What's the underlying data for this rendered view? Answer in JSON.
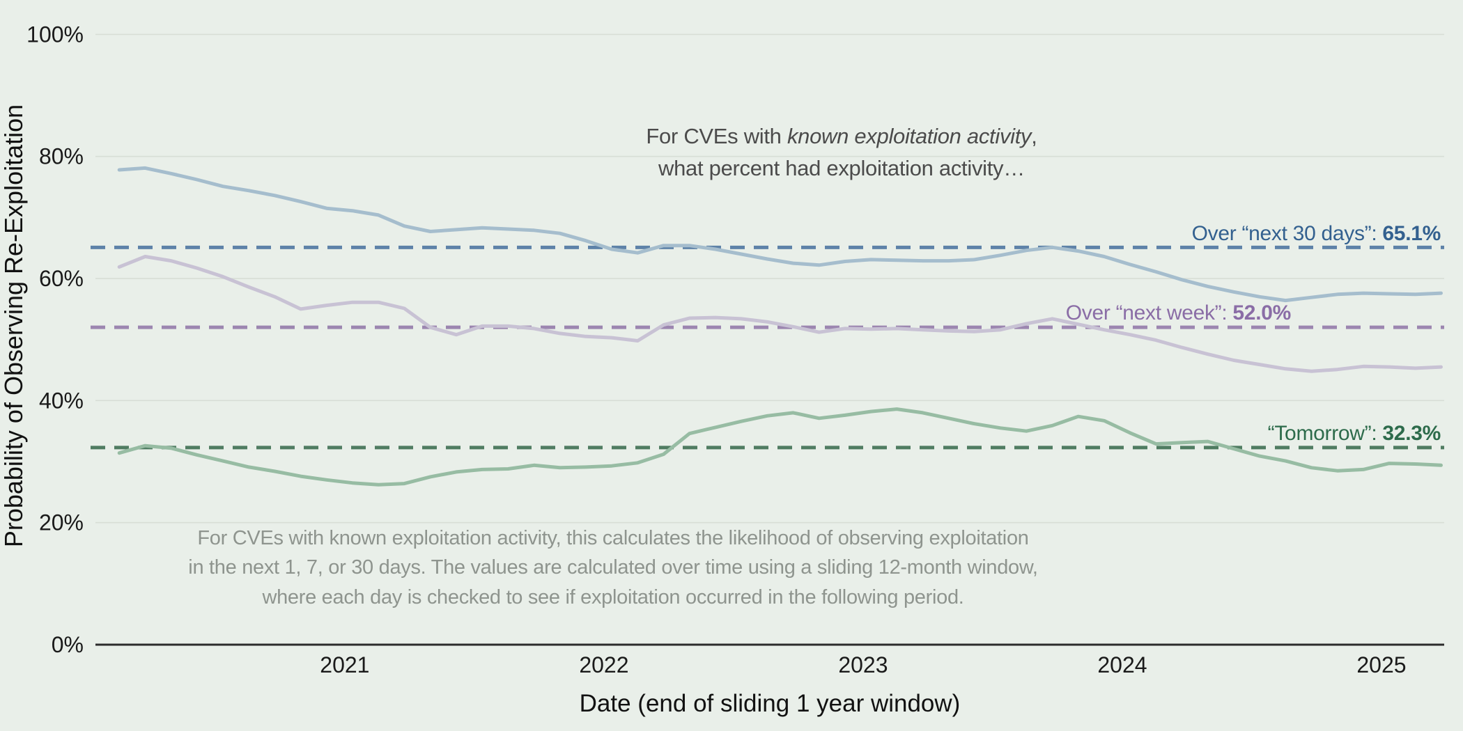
{
  "title": {
    "line1_pre": "For CVEs with ",
    "line1_italic": "known exploitation activity",
    "line1_post": ",",
    "line2": "what percent had exploitation activity…"
  },
  "caption": {
    "lines": [
      "For CVEs with known exploitation activity, this calculates the likelihood of observing exploitation",
      "in the next 1, 7, or 30 days. The values are calculated over time using a sliding 12-month window,",
      "where each day is checked to see if exploitation occurred in the following period."
    ]
  },
  "chart_data": {
    "type": "line",
    "xlabel": "Date (end of sliding 1 year window)",
    "ylabel": "Probability of Observing Re-Exploitation",
    "xlim": [
      2020.038,
      2025.242
    ],
    "ylim": [
      0,
      100
    ],
    "grid": "horizontal",
    "x_tick_values": [
      2021,
      2022,
      2023,
      2024,
      2025
    ],
    "x_tick_labels": [
      "2021",
      "2022",
      "2023",
      "2024",
      "2025"
    ],
    "y_tick_values": [
      0,
      20,
      40,
      60,
      80,
      100
    ],
    "y_tick_labels": [
      "0%",
      "20%",
      "40%",
      "60%",
      "80%",
      "100%"
    ],
    "x": [
      2020.13,
      2020.23,
      2020.33,
      2020.43,
      2020.53,
      2020.63,
      2020.73,
      2020.83,
      2020.93,
      2021.03,
      2021.13,
      2021.23,
      2021.33,
      2021.43,
      2021.53,
      2021.63,
      2021.73,
      2021.83,
      2021.93,
      2022.03,
      2022.13,
      2022.23,
      2022.33,
      2022.43,
      2022.53,
      2022.63,
      2022.73,
      2022.83,
      2022.93,
      2023.03,
      2023.13,
      2023.23,
      2023.33,
      2023.43,
      2023.53,
      2023.63,
      2023.73,
      2023.83,
      2023.93,
      2024.03,
      2024.13,
      2024.23,
      2024.33,
      2024.43,
      2024.53,
      2024.63,
      2024.73,
      2024.83,
      2024.93,
      2025.03,
      2025.13,
      2025.23
    ],
    "series": [
      {
        "id": "next-30-days",
        "label": "Over “next 30 days”: ",
        "value_label": "65.1%",
        "reference_value": 65.1,
        "line_color": "#a5bdcd",
        "dash_color": "#5e82a8",
        "text_color": "#33608f",
        "values": [
          77.8,
          78.1,
          77.2,
          76.2,
          75.1,
          74.4,
          73.6,
          72.6,
          71.5,
          71.1,
          70.4,
          68.6,
          67.7,
          68.0,
          68.3,
          68.1,
          67.9,
          67.4,
          66.2,
          64.8,
          64.2,
          65.4,
          65.4,
          64.8,
          64.0,
          63.2,
          62.5,
          62.2,
          62.8,
          63.1,
          63.0,
          62.9,
          62.9,
          63.1,
          63.8,
          64.6,
          65.1,
          64.5,
          63.6,
          62.3,
          61.1,
          59.8,
          58.7,
          57.8,
          57.0,
          56.4,
          56.9,
          57.4,
          57.6,
          57.5,
          57.4,
          57.6
        ]
      },
      {
        "id": "next-week",
        "label": "Over “next week”: ",
        "value_label": "52.0%",
        "reference_value": 52.0,
        "line_color": "#c8c2d4",
        "dash_color": "#9c86b0",
        "text_color": "#8a6da6",
        "values": [
          61.9,
          63.6,
          62.9,
          61.7,
          60.3,
          58.6,
          57.0,
          55.0,
          55.6,
          56.1,
          56.1,
          55.1,
          52.0,
          50.8,
          52.2,
          52.2,
          51.8,
          51.0,
          50.5,
          50.3,
          49.8,
          52.4,
          53.5,
          53.6,
          53.4,
          52.9,
          52.1,
          51.2,
          51.8,
          51.7,
          51.8,
          51.6,
          51.4,
          51.3,
          51.6,
          52.6,
          53.4,
          52.5,
          51.6,
          50.8,
          49.9,
          48.7,
          47.6,
          46.6,
          45.9,
          45.2,
          44.8,
          45.1,
          45.6,
          45.5,
          45.3,
          45.5
        ]
      },
      {
        "id": "tomorrow",
        "label": "“Tomorrow”: ",
        "value_label": "32.3%",
        "reference_value": 32.3,
        "line_color": "#97bca3",
        "dash_color": "#4f7c61",
        "text_color": "#2d6b4b",
        "values": [
          31.4,
          32.6,
          32.2,
          31.1,
          30.1,
          29.1,
          28.4,
          27.6,
          27.0,
          26.5,
          26.2,
          26.4,
          27.5,
          28.3,
          28.7,
          28.8,
          29.4,
          29.0,
          29.1,
          29.3,
          29.8,
          31.2,
          34.6,
          35.6,
          36.6,
          37.5,
          38.0,
          37.1,
          37.6,
          38.2,
          38.6,
          38.0,
          37.1,
          36.2,
          35.5,
          35.0,
          35.9,
          37.4,
          36.7,
          34.7,
          32.9,
          33.1,
          33.3,
          32.1,
          30.9,
          30.1,
          29.0,
          28.5,
          28.7,
          29.7,
          29.6,
          29.4
        ]
      }
    ]
  }
}
